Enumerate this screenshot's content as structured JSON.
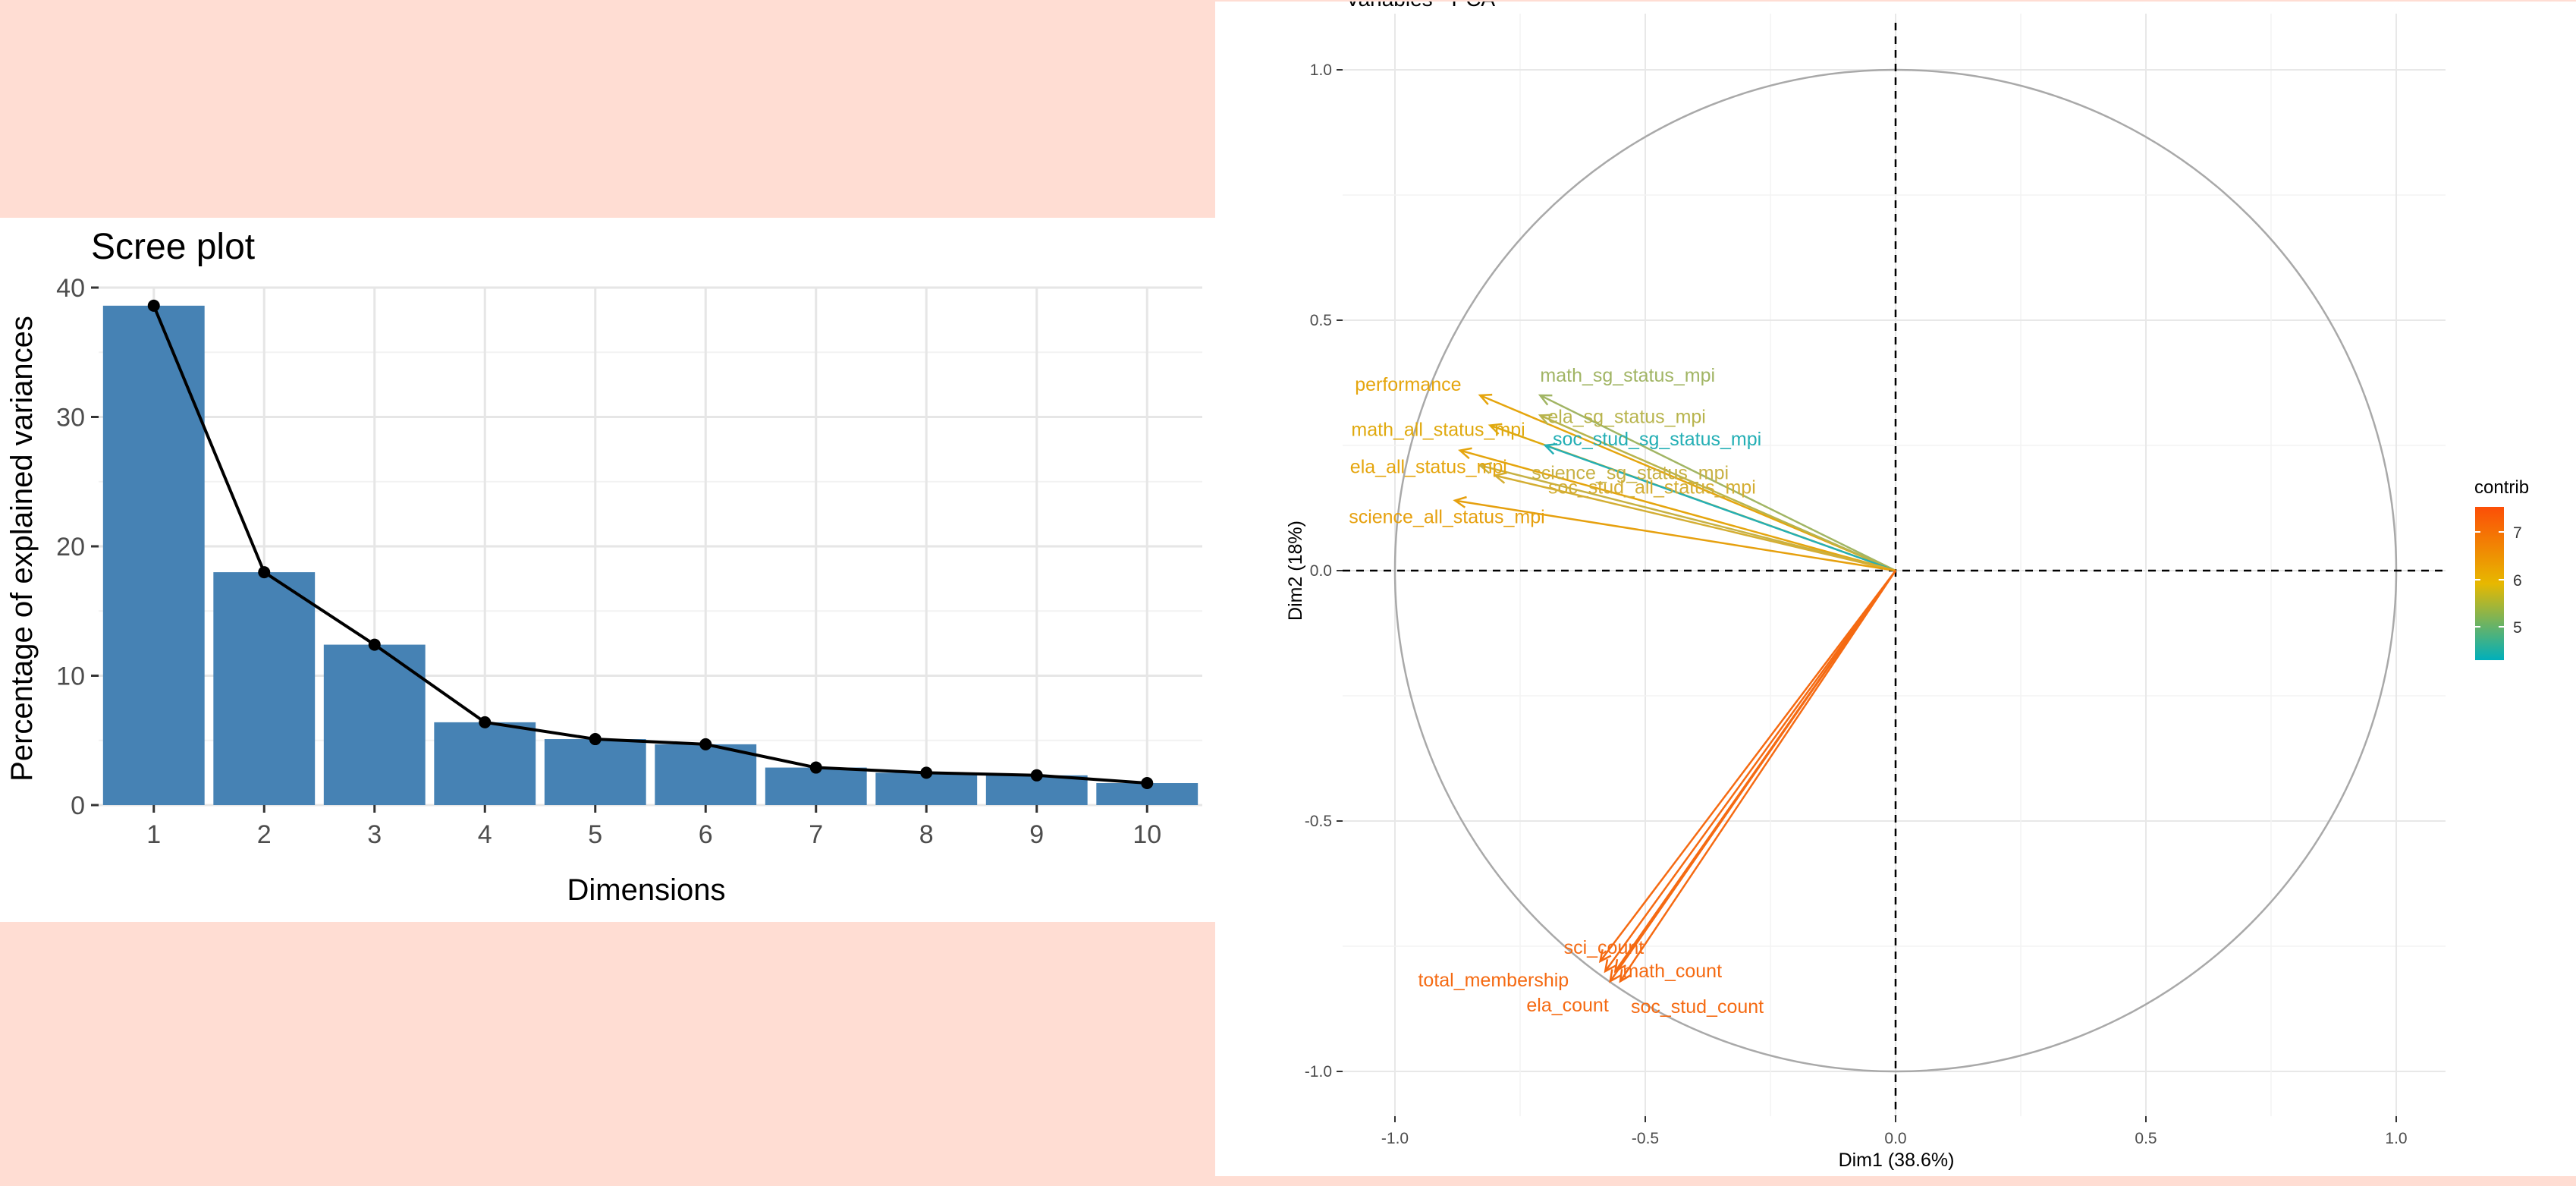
{
  "chart_data": [
    {
      "type": "bar",
      "title": "Scree plot",
      "xlabel": "Dimensions",
      "ylabel": "Percentage of explained variances",
      "categories": [
        "1",
        "2",
        "3",
        "4",
        "5",
        "6",
        "7",
        "8",
        "9",
        "10"
      ],
      "values": [
        38.6,
        18.0,
        12.4,
        6.4,
        5.1,
        4.7,
        2.9,
        2.5,
        2.3,
        1.7
      ],
      "ylim": [
        0,
        40
      ],
      "yticks": [
        0,
        10,
        20,
        30,
        40
      ],
      "bar_color": "#4682B4",
      "line_color": "#000000",
      "grid": true
    },
    {
      "type": "scatter",
      "title": "Variables - PCA",
      "xlabel": "Dim1 (38.6%)",
      "ylabel": "Dim2 (18%)",
      "xlim": [
        -1.0,
        1.0
      ],
      "ylim": [
        -1.0,
        1.0
      ],
      "xticks": [
        "-1.0",
        "-0.5",
        "0.0",
        "0.5",
        "1.0"
      ],
      "yticks": [
        "1.0",
        "0.5",
        "0.0",
        "-0.5",
        "-1.0"
      ],
      "legend_title": "contrib",
      "legend_ticks": [
        "7",
        "6",
        "5"
      ],
      "legend_placement": "right",
      "colors": {
        "low": "#00AFBB",
        "mid": "#E7B800",
        "high": "#FC4E07"
      },
      "variables": [
        {
          "name": "performance",
          "x": -0.83,
          "y": 0.35,
          "color": "#E5A50D"
        },
        {
          "name": "math_sg_status_mpi",
          "x": -0.71,
          "y": 0.35,
          "color": "#A1B564"
        },
        {
          "name": "ela_sg_status_mpi",
          "x": -0.71,
          "y": 0.31,
          "color": "#B8B44D"
        },
        {
          "name": "math_all_status_mpi",
          "x": -0.81,
          "y": 0.29,
          "color": "#E0A90E"
        },
        {
          "name": "soc_stud_sg_status_mpi",
          "x": -0.7,
          "y": 0.25,
          "color": "#24AFB5"
        },
        {
          "name": "ela_all_status_mpi",
          "x": -0.87,
          "y": 0.24,
          "color": "#E5A50D"
        },
        {
          "name": "science_sg_status_mpi",
          "x": -0.83,
          "y": 0.21,
          "color": "#C7B143"
        },
        {
          "name": "soc_stud_all_status_mpi",
          "x": -0.8,
          "y": 0.19,
          "color": "#D4AE33"
        },
        {
          "name": "science_all_status_mpi",
          "x": -0.88,
          "y": 0.14,
          "color": "#E6A00E"
        },
        {
          "name": "sci_count",
          "x": -0.59,
          "y": -0.78,
          "color": "#F56A12"
        },
        {
          "name": "total_membership",
          "x": -0.58,
          "y": -0.8,
          "color": "#F56A12"
        },
        {
          "name": "math_count",
          "x": -0.56,
          "y": -0.8,
          "color": "#F56A12"
        },
        {
          "name": "ela_count",
          "x": -0.57,
          "y": -0.82,
          "color": "#F56A12"
        },
        {
          "name": "soc_stud_count",
          "x": -0.55,
          "y": -0.82,
          "color": "#F56A12"
        }
      ]
    }
  ]
}
